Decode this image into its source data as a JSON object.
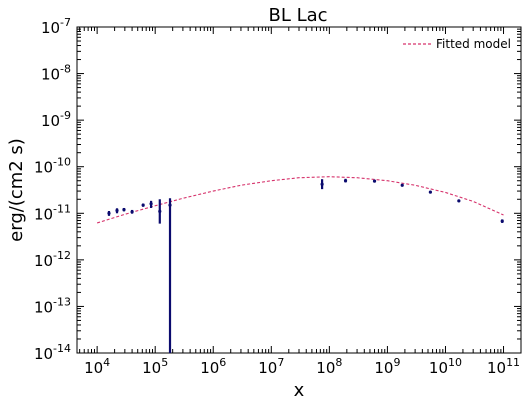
{
  "chart_data": {
    "type": "scatter",
    "title": "BL Lac",
    "xlabel": "x",
    "ylabel": "erg/(cm2 s)",
    "xscale": "log",
    "yscale": "log",
    "xlim": [
      4500.0,
      200000000000.0
    ],
    "ylim": [
      1e-14,
      1e-07
    ],
    "x_tick_exponents": [
      4,
      5,
      6,
      7,
      8,
      9,
      10,
      11
    ],
    "y_tick_exponents": [
      -14,
      -13,
      -12,
      -11,
      -10,
      -9,
      -8,
      -7
    ],
    "tick_base": "10",
    "legend": {
      "position": "top-right",
      "entries": [
        "Fitted model"
      ]
    },
    "colors": {
      "data": "#0b0b6e",
      "model": "#d6336c"
    },
    "series": [
      {
        "name": "",
        "kind": "errorbar",
        "points": [
          {
            "x": 16000.0,
            "y": 1e-11,
            "ylo": 8.8e-12,
            "yhi": 1.12e-11
          },
          {
            "x": 22000.0,
            "y": 1.15e-11,
            "ylo": 1e-11,
            "yhi": 1.28e-11
          },
          {
            "x": 29000.0,
            "y": 1.2e-11,
            "ylo": 1.1e-11,
            "yhi": 1.3e-11
          },
          {
            "x": 40000.0,
            "y": 1.08e-11,
            "ylo": 9.8e-12,
            "yhi": 1.18e-11
          },
          {
            "x": 62000.0,
            "y": 1.5e-11,
            "ylo": 1.38e-11,
            "yhi": 1.62e-11
          },
          {
            "x": 85000.0,
            "y": 1.6e-11,
            "ylo": 1.3e-11,
            "yhi": 1.85e-11
          },
          {
            "x": 120000.0,
            "y": 1.1e-11,
            "ylo": 6e-12,
            "yhi": 2e-11
          },
          {
            "x": 180000.0,
            "y": 1.5e-11,
            "ylo": 1e-14,
            "yhi": 2.1e-11
          },
          {
            "x": 75000000.0,
            "y": 4.2e-11,
            "ylo": 3.3e-11,
            "yhi": 5.4e-11
          },
          {
            "x": 190000000.0,
            "y": 5e-11,
            "ylo": 4.6e-11,
            "yhi": 5.5e-11
          },
          {
            "x": 600000000.0,
            "y": 4.9e-11,
            "ylo": 4.6e-11,
            "yhi": 5.2e-11
          },
          {
            "x": 1800000000.0,
            "y": 4e-11,
            "ylo": 3.8e-11,
            "yhi": 4.2e-11
          },
          {
            "x": 5500000000.0,
            "y": 2.85e-11,
            "ylo": 2.7e-11,
            "yhi": 3e-11
          },
          {
            "x": 17000000000.0,
            "y": 1.85e-11,
            "ylo": 1.75e-11,
            "yhi": 1.95e-11
          },
          {
            "x": 95000000000.0,
            "y": 6.8e-12,
            "ylo": 6.2e-12,
            "yhi": 7.4e-12
          }
        ]
      },
      {
        "name": "Fitted model",
        "kind": "line",
        "style": "dashed",
        "x": [
          10000.0,
          30000.0,
          100000.0,
          300000.0,
          1000000.0,
          3000000.0,
          10000000.0,
          30000000.0,
          100000000.0,
          300000000.0,
          1000000000.0,
          3000000000.0,
          10000000000.0,
          30000000000.0,
          100000000000.0
        ],
        "y": [
          6.2e-12,
          9.5e-12,
          1.45e-11,
          2.1e-11,
          3e-11,
          4e-11,
          5e-11,
          5.8e-11,
          6.1e-11,
          5.8e-11,
          5e-11,
          4e-11,
          2.8e-11,
          1.8e-11,
          9.2e-12
        ]
      }
    ]
  }
}
